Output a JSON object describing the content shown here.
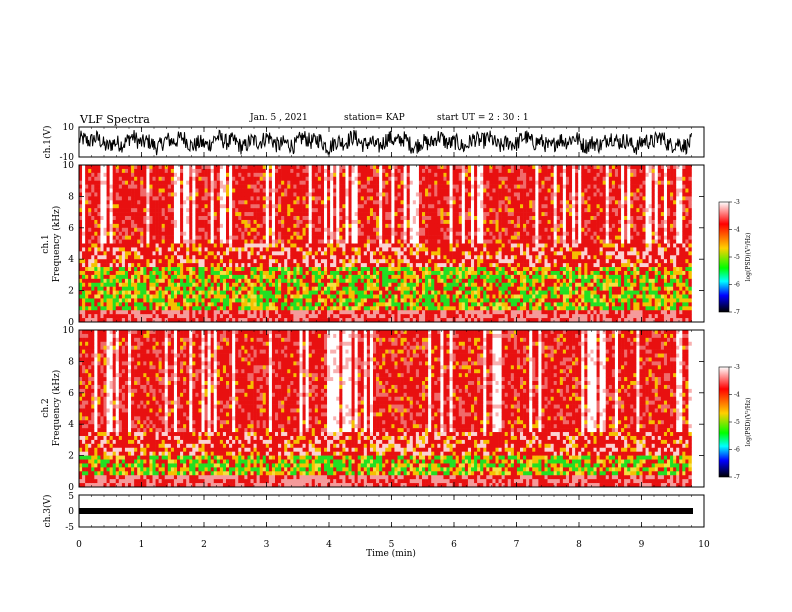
{
  "header": {
    "title": "VLF Spectra",
    "date": "Jan. 5 , 2021",
    "station": "station= KAP",
    "start": "start UT = 2 : 30 : 1"
  },
  "chart_data": [
    {
      "panel": "waveform-ch1",
      "type": "line",
      "ylabel": "ch.1(V)",
      "ylim": [
        -10,
        10
      ],
      "yticks": [
        "10",
        "-10"
      ],
      "xlim": [
        0,
        10
      ],
      "note_visible": "dense black waveform spanning roughly -7 V to +7 V from 0 to ~9.8 min"
    },
    {
      "panel": "spectrogram-ch1",
      "type": "heatmap",
      "ylabel": "ch.1",
      "ylabel2": "Frequency (kHz)",
      "ylim": [
        0,
        10
      ],
      "yticks": [
        "0",
        "2",
        "4",
        "6",
        "8",
        "10"
      ],
      "xlim": [
        0,
        10
      ],
      "colorbar": {
        "label": "log(PSD)(V²/Hz)",
        "range": [
          -7,
          -3
        ],
        "ticks": [
          "-3",
          "-4",
          "-5",
          "-6",
          "-7"
        ]
      }
    },
    {
      "panel": "spectrogram-ch2",
      "type": "heatmap",
      "ylabel": "ch.2",
      "ylabel2": "Frequency (kHz)",
      "ylim": [
        0,
        10
      ],
      "yticks": [
        "0",
        "2",
        "4",
        "6",
        "8",
        "10"
      ],
      "xlim": [
        0,
        10
      ],
      "colorbar": {
        "label": "log(PSD)(V²/Hz)",
        "range": [
          -7,
          -3
        ],
        "ticks": [
          "-3",
          "-4",
          "-5",
          "-6",
          "-7"
        ]
      }
    },
    {
      "panel": "waveform-ch3",
      "type": "line",
      "ylabel": "ch.3(V)",
      "ylim": [
        -5,
        5
      ],
      "yticks": [
        "5",
        "0",
        "-5"
      ],
      "xlim": [
        0,
        10
      ],
      "xlabel": "Time (min)",
      "xticks": [
        "0",
        "1",
        "2",
        "3",
        "4",
        "5",
        "6",
        "7",
        "8",
        "9",
        "10"
      ],
      "note_visible": "flat thick black trace near -1 V from 0 to ~9.8 min"
    }
  ],
  "colors": {
    "waveform": "#000000",
    "spectrogram_high": "#e81010",
    "spectrogram_mid": "#f6c000",
    "spectrogram_low": "#22e022",
    "colorbar_stops": [
      "#ffffff",
      "#ff0000",
      "#ffd000",
      "#00ff00",
      "#00ffff",
      "#0000ff",
      "#000000"
    ]
  }
}
